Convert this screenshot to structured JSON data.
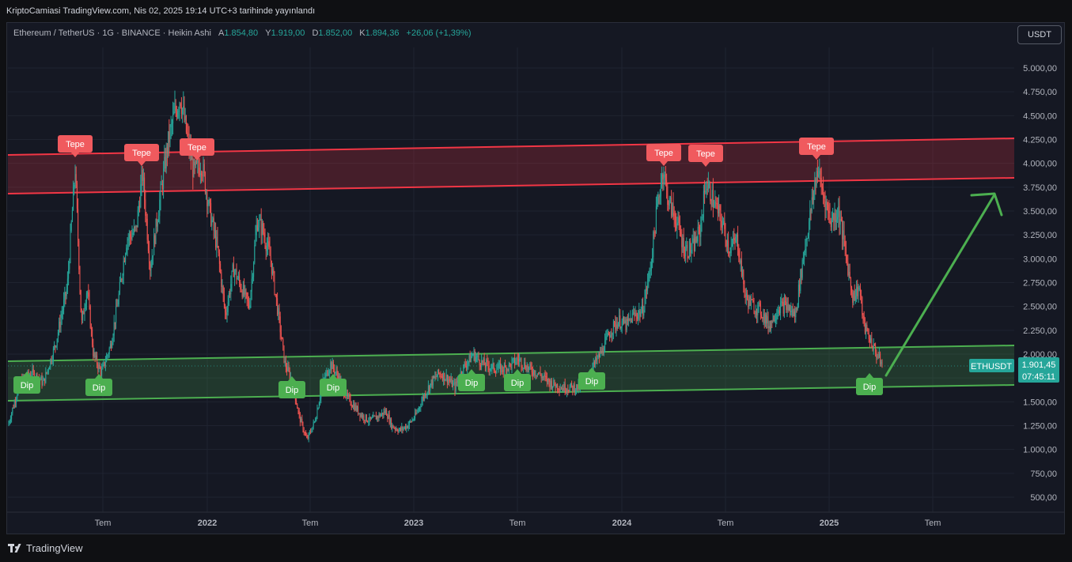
{
  "header": {
    "published_text": "KriptoCamiasi TradingView.com, Nis 02, 2025 19:14 UTC+3 tarihinde yayınlandı"
  },
  "legend": {
    "symbol": "Ethereum / TetherUS",
    "interval": "1G",
    "exchange": "BINANCE",
    "chart_style": "Heikin Ashi",
    "open_label": "A",
    "open_value": "1.854,80",
    "high_label": "Y",
    "high_value": "1.919,00",
    "low_label": "D",
    "low_value": "1.852,00",
    "close_label": "K",
    "close_value": "1.894,36",
    "change": "+26,06 (+1,39%)"
  },
  "currency_button": "USDT",
  "price_axis": {
    "labels": [
      "5.000,00",
      "4.750,00",
      "4.500,00",
      "4.250,00",
      "4.000,00",
      "3.750,00",
      "3.500,00",
      "3.250,00",
      "3.000,00",
      "2.750,00",
      "2.500,00",
      "2.250,00",
      "2.000,00",
      "1.750,00",
      "1.500,00",
      "1.250,00",
      "1.000,00",
      "750,00",
      "500,00"
    ],
    "symbol_tag": "ETHUSDT",
    "last_price": "1.901,45",
    "countdown": "07:45:11"
  },
  "time_axis": {
    "labels": [
      "Tem",
      "2022",
      "Tem",
      "2023",
      "Tem",
      "2024",
      "Tem",
      "2025",
      "Tem"
    ]
  },
  "annotations": {
    "tepe_label": "Tepe",
    "dip_label": "Dip"
  },
  "colors": {
    "up": "#26a69a",
    "down": "#ef5350",
    "resistance": "#f23645",
    "support": "#4caf50",
    "background": "#151823",
    "grid": "#1f2330"
  },
  "footer": {
    "brand": "TradingView"
  }
}
